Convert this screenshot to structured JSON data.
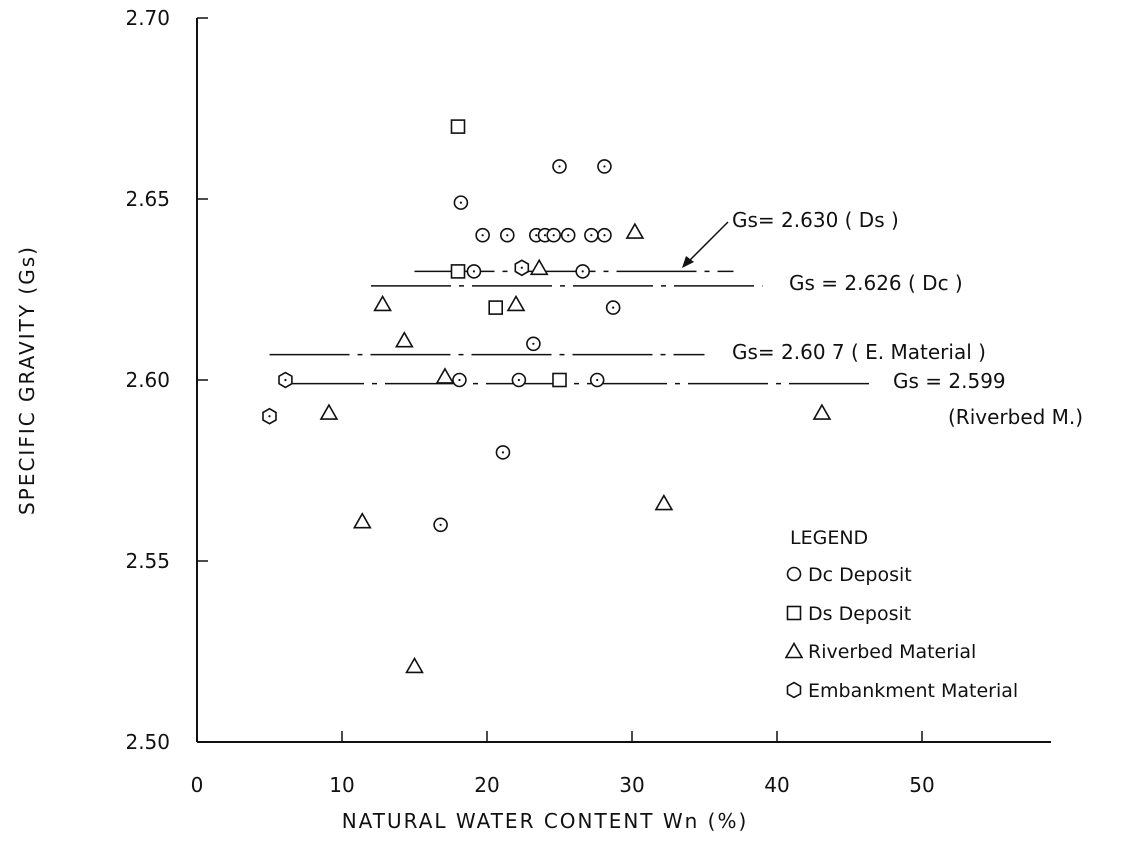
{
  "chart_data": {
    "type": "scatter",
    "xlabel": "NATURAL WATER CONTENT Wn (%)",
    "ylabel": "SPECIFIC GRAVITY (Gs)",
    "xlim": [
      0,
      60
    ],
    "ylim": [
      2.5,
      2.7
    ],
    "x_ticks": [
      {
        "value": 0,
        "label": "0"
      },
      {
        "value": 10,
        "label": "10"
      },
      {
        "value": 20,
        "label": "20"
      },
      {
        "value": 30,
        "label": "30"
      },
      {
        "value": 40,
        "label": "40"
      },
      {
        "value": 50,
        "label": "50"
      }
    ],
    "y_ticks": [
      {
        "value": 2.5,
        "label": "2.50"
      },
      {
        "value": 2.55,
        "label": "2.55"
      },
      {
        "value": 2.6,
        "label": "2.60"
      },
      {
        "value": 2.65,
        "label": "2.65"
      },
      {
        "value": 2.7,
        "label": "2.70"
      }
    ],
    "grid": false,
    "legend_position": "bottom-right",
    "legend_title": "LEGEND",
    "series": [
      {
        "name": "Dc Deposit",
        "marker": "circle",
        "points": [
          [
            18.2,
            2.649
          ],
          [
            19.7,
            2.64
          ],
          [
            21.4,
            2.64
          ],
          [
            23.4,
            2.64
          ],
          [
            24.0,
            2.64
          ],
          [
            24.6,
            2.64
          ],
          [
            25.6,
            2.64
          ],
          [
            27.2,
            2.64
          ],
          [
            28.1,
            2.64
          ],
          [
            25.0,
            2.659
          ],
          [
            28.1,
            2.659
          ],
          [
            19.1,
            2.63
          ],
          [
            26.6,
            2.63
          ],
          [
            28.7,
            2.62
          ],
          [
            23.2,
            2.61
          ],
          [
            18.1,
            2.6
          ],
          [
            22.2,
            2.6
          ],
          [
            27.6,
            2.6
          ],
          [
            21.1,
            2.58
          ],
          [
            16.8,
            2.56
          ]
        ]
      },
      {
        "name": "Ds Deposit",
        "marker": "square",
        "points": [
          [
            18.0,
            2.67
          ],
          [
            18.0,
            2.63
          ],
          [
            20.6,
            2.62
          ],
          [
            25.0,
            2.6
          ]
        ]
      },
      {
        "name": "Riverbed Material",
        "marker": "triangle",
        "points": [
          [
            30.2,
            2.641
          ],
          [
            23.6,
            2.631
          ],
          [
            12.8,
            2.621
          ],
          [
            22.0,
            2.621
          ],
          [
            14.3,
            2.611
          ],
          [
            17.1,
            2.601
          ],
          [
            9.1,
            2.591
          ],
          [
            43.1,
            2.591
          ],
          [
            11.4,
            2.561
          ],
          [
            32.2,
            2.566
          ],
          [
            15.0,
            2.521
          ]
        ]
      },
      {
        "name": "Embankment Material",
        "marker": "hexagon",
        "points": [
          [
            6.1,
            2.6
          ],
          [
            5.0,
            2.59
          ],
          [
            22.4,
            2.631
          ]
        ]
      }
    ],
    "reference_lines": [
      {
        "label": "Gs= 2.630 ( Ds )",
        "y": 2.63,
        "x_start": 15.0,
        "x_end": 37.0,
        "dash": "dash-dot"
      },
      {
        "label": "Gs = 2.626 ( Dc )",
        "y": 2.626,
        "x_start": 12.0,
        "x_end": 39.0,
        "dash": "dash-dot"
      },
      {
        "label": "Gs= 2.60 7 ( E. Material )",
        "y": 2.607,
        "x_start": 5.0,
        "x_end": 35.0,
        "dash": "dash-dot"
      },
      {
        "label": "Gs = 2.599",
        "sublabel": "(Riverbed M.)",
        "y": 2.599,
        "x_start": 6.0,
        "x_end": 46.5,
        "dash": "dash-dot"
      }
    ]
  }
}
